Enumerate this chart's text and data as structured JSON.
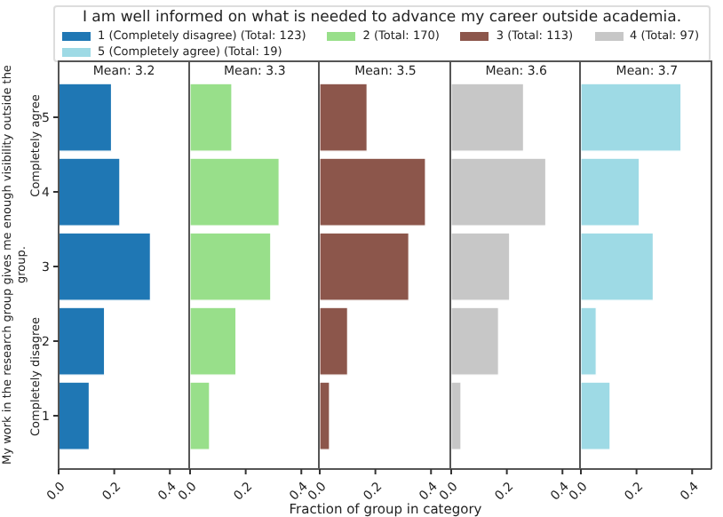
{
  "chart_data": [
    {
      "type": "bar",
      "orientation": "horizontal",
      "title": "Mean: 3.2",
      "legend_title": "I am well informed on what is needed to advance my career outside academia.",
      "legend": "top",
      "ylabel": "My work in the research group gives me enough visibility outside the group.",
      "annotations": [
        "Completely agree",
        "Completely disagree"
      ],
      "categories": [
        "5",
        "4",
        "3",
        "2",
        "1"
      ],
      "xlim": [
        0,
        0.47
      ],
      "xticks": [
        {
          "value": 0,
          "label": "0.0"
        },
        {
          "value": 0.2,
          "label": "0.2"
        },
        {
          "value": 0.4,
          "label": "0.4"
        }
      ],
      "series": [
        {
          "name": "1 (Completely disagree) (Total: 123)",
          "color": "#1f77b4",
          "values": [
            0.19,
            0.22,
            0.33,
            0.165,
            0.11
          ]
        }
      ]
    },
    {
      "type": "bar",
      "orientation": "horizontal",
      "title": "Mean: 3.3",
      "categories": [
        "5",
        "4",
        "3",
        "2",
        "1"
      ],
      "xlim": [
        0,
        0.47
      ],
      "xticks": [
        {
          "value": 0,
          "label": "0.0"
        },
        {
          "value": 0.2,
          "label": "0.2"
        },
        {
          "value": 0.4,
          "label": "0.4"
        }
      ],
      "tick_labels": "x",
      "series": [
        {
          "name": "2 (Total: 170)",
          "color": "#98df8a",
          "values": [
            0.15,
            0.32,
            0.29,
            0.165,
            0.07
          ]
        }
      ]
    },
    {
      "type": "bar",
      "orientation": "horizontal",
      "title": "Mean: 3.5",
      "xlabel": "Fraction of group in category",
      "categories": [
        "5",
        "4",
        "3",
        "2",
        "1"
      ],
      "xlim": [
        0,
        0.47
      ],
      "xticks": [
        {
          "value": 0,
          "label": "0.0"
        },
        {
          "value": 0.2,
          "label": "0.2"
        },
        {
          "value": 0.4,
          "label": "0.4"
        }
      ],
      "tick_labels": "x",
      "series": [
        {
          "name": "3 (Total: 113)",
          "color": "#8c564b",
          "values": [
            0.17,
            0.38,
            0.32,
            0.1,
            0.035
          ]
        }
      ]
    },
    {
      "type": "bar",
      "orientation": "horizontal",
      "title": "Mean: 3.6",
      "categories": [
        "5",
        "4",
        "3",
        "2",
        "1"
      ],
      "xlim": [
        0,
        0.47
      ],
      "xticks": [
        {
          "value": 0,
          "label": "0.0"
        },
        {
          "value": 0.2,
          "label": "0.2"
        },
        {
          "value": 0.4,
          "label": "0.4"
        }
      ],
      "tick_labels": "x",
      "series": [
        {
          "name": "4 (Total: 97)",
          "color": "#c7c7c7",
          "values": [
            0.26,
            0.34,
            0.21,
            0.17,
            0.035
          ]
        }
      ]
    },
    {
      "type": "bar",
      "orientation": "horizontal",
      "title": "Mean: 3.7",
      "categories": [
        "5",
        "4",
        "3",
        "2",
        "1"
      ],
      "xlim": [
        0,
        0.47
      ],
      "xticks": [
        {
          "value": 0,
          "label": "0.0"
        },
        {
          "value": 0.2,
          "label": "0.2"
        },
        {
          "value": 0.4,
          "label": "0.4"
        }
      ],
      "tick_labels": "x",
      "series": [
        {
          "name": "5 (Completely agree) (Total: 19)",
          "color": "#9edae5",
          "values": [
            0.36,
            0.21,
            0.26,
            0.055,
            0.105
          ]
        }
      ]
    }
  ]
}
